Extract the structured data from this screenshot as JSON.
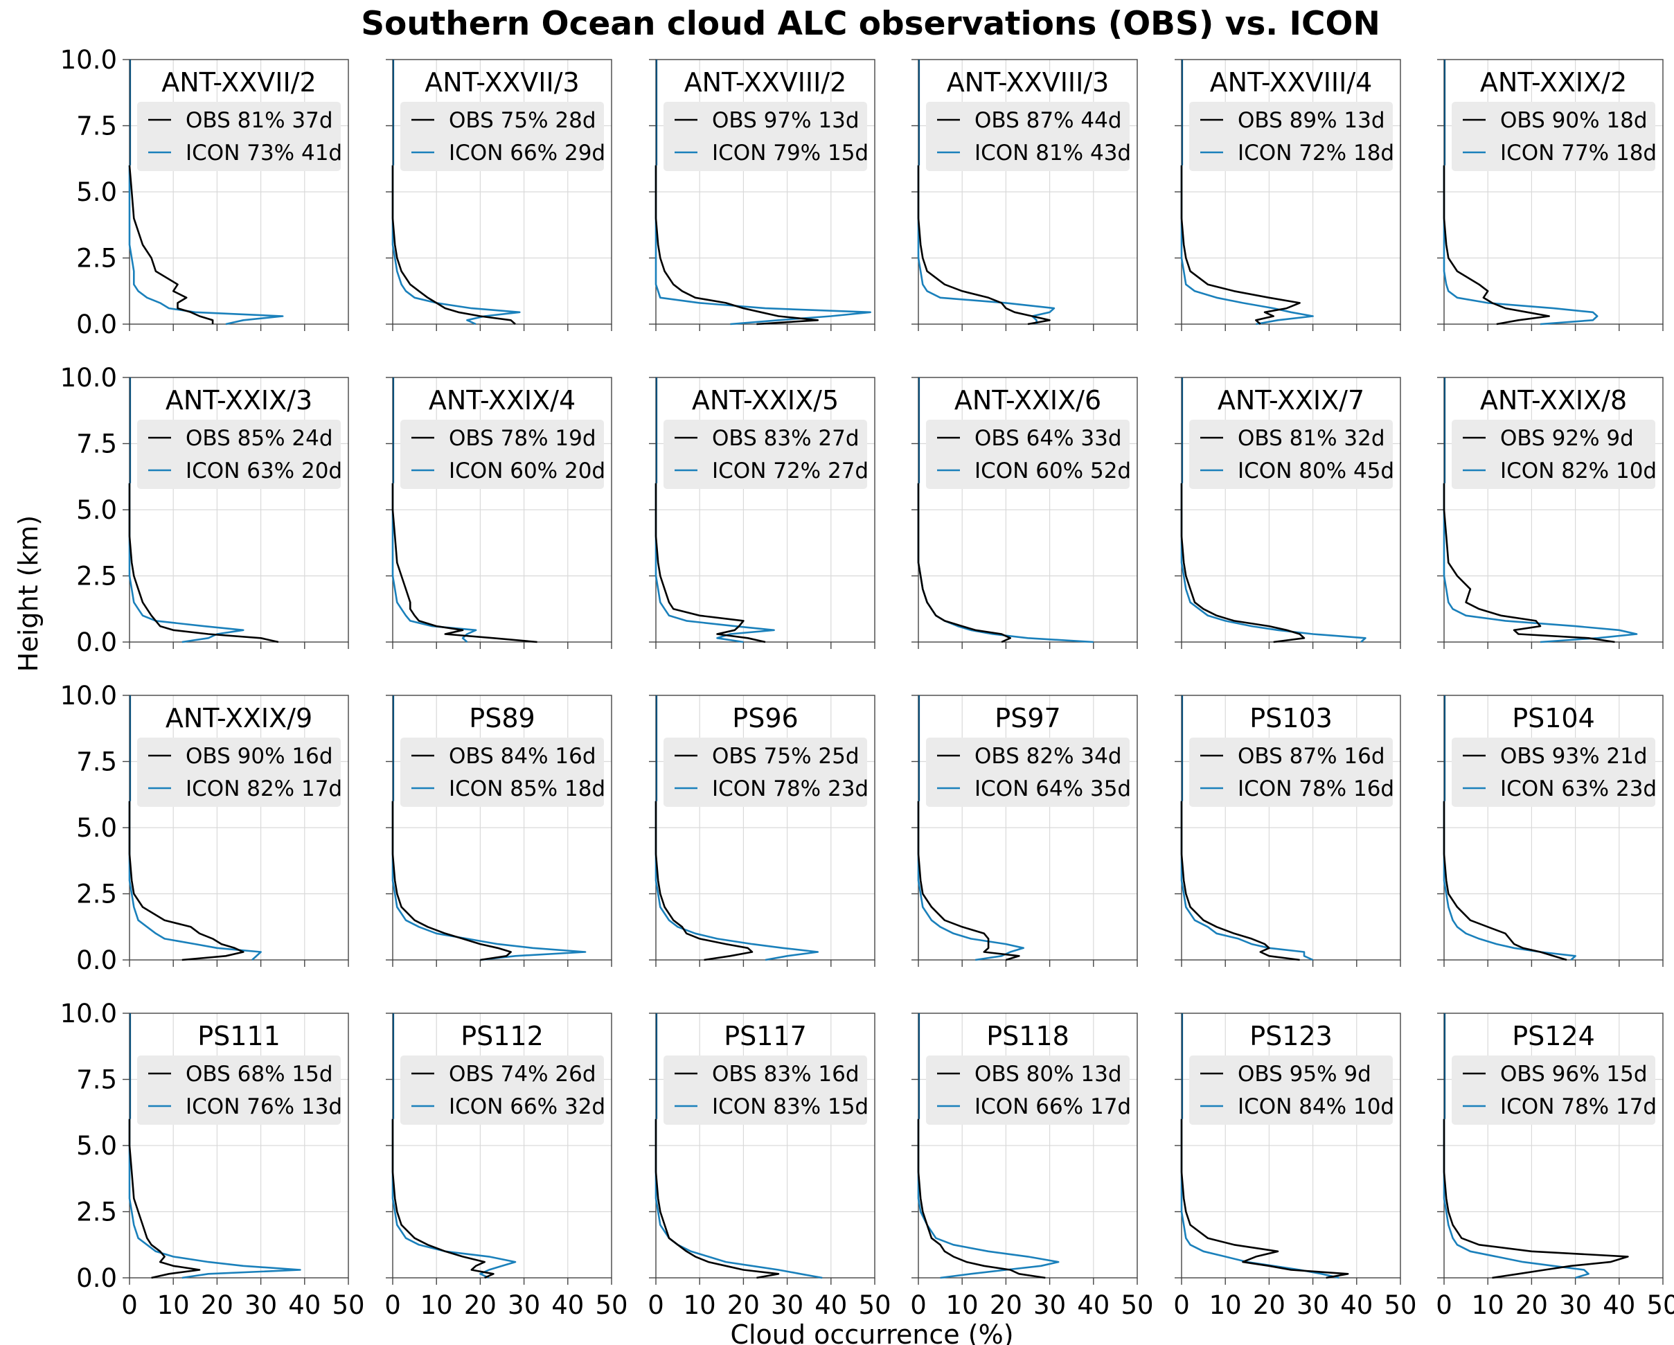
{
  "chart_data": {
    "type": "line",
    "title": "Southern Ocean cloud ALC observations (OBS) vs. ICON",
    "xlabel": "Cloud occurrence (%)",
    "ylabel": "Height (km)",
    "xlim": [
      0,
      50
    ],
    "ylim": [
      0,
      10
    ],
    "xticks": [
      "0",
      "10",
      "20",
      "30",
      "40",
      "50"
    ],
    "yticks": [
      "0.0",
      "2.5",
      "5.0",
      "7.5",
      "10.0"
    ],
    "grid": true,
    "legend_position": "top-center",
    "colors": {
      "OBS": "#000000",
      "ICON": "#1a80bb"
    },
    "height_km": [
      0,
      0.15,
      0.3,
      0.45,
      0.6,
      0.8,
      1.0,
      1.25,
      1.5,
      2.0,
      2.5,
      3.0,
      4.0,
      5.0,
      6.0
    ],
    "panels": [
      {
        "title": "ANT-XXVII/2",
        "obs_label": "OBS 81% 37d",
        "icon_label": "ICON 73% 41d",
        "obs": [
          19,
          19,
          16,
          14,
          11,
          11,
          13,
          10,
          11,
          6,
          5,
          3,
          1,
          0.5,
          0
        ],
        "icon": [
          22,
          26,
          35,
          15,
          9,
          7,
          4,
          2,
          1,
          1,
          0.5,
          0,
          0,
          0,
          0
        ]
      },
      {
        "title": "ANT-XXVII/3",
        "obs_label": "OBS 75% 28d",
        "icon_label": "ICON 66% 29d",
        "obs": [
          28,
          27,
          20,
          15,
          12,
          10,
          8,
          6,
          4,
          2,
          1,
          0.5,
          0,
          0,
          0
        ],
        "icon": [
          19,
          17,
          21,
          29,
          18,
          10,
          5,
          3,
          2,
          1,
          0.5,
          0,
          0,
          0,
          0
        ]
      },
      {
        "title": "ANT-XXVIII/2",
        "obs_label": "OBS 97% 13d",
        "icon_label": "ICON 79% 15d",
        "obs": [
          23,
          37,
          28,
          24,
          20,
          16,
          9,
          6,
          4,
          2,
          1,
          0.5,
          0,
          0,
          0
        ],
        "icon": [
          17,
          28,
          40,
          49,
          25,
          10,
          1,
          0.5,
          0,
          0,
          0,
          0,
          0,
          0,
          0
        ]
      },
      {
        "title": "ANT-XXVIII/3",
        "obs_label": "OBS 87% 44d",
        "icon_label": "ICON 81% 43d",
        "obs": [
          25,
          30,
          26,
          22,
          20,
          19,
          16,
          10,
          6,
          2,
          1,
          0.5,
          0,
          0,
          0
        ],
        "icon": [
          27,
          27,
          26,
          30,
          31,
          20,
          5,
          2,
          1,
          0.5,
          0,
          0,
          0,
          0,
          0
        ]
      },
      {
        "title": "ANT-XXVIII/4",
        "obs_label": "OBS 89% 13d",
        "icon_label": "ICON 72% 18d",
        "obs": [
          18,
          17,
          21,
          19,
          24,
          27,
          20,
          12,
          6,
          2,
          1,
          0.5,
          0,
          0,
          0
        ],
        "icon": [
          17,
          22,
          30,
          25,
          21,
          14,
          8,
          3,
          1,
          0.5,
          0,
          0,
          0,
          0,
          0
        ]
      },
      {
        "title": "ANT-XXIX/2",
        "obs_label": "OBS 90% 18d",
        "icon_label": "ICON 77% 18d",
        "obs": [
          12,
          17,
          24,
          19,
          14,
          11,
          9,
          10,
          8,
          3,
          1,
          0.5,
          0,
          0,
          0
        ],
        "icon": [
          22,
          34,
          35,
          34,
          25,
          10,
          3,
          1,
          0.5,
          0,
          0,
          0,
          0,
          0,
          0
        ]
      },
      {
        "title": "ANT-XXIX/3",
        "obs_label": "OBS 85% 24d",
        "icon_label": "ICON 63% 20d",
        "obs": [
          34,
          30,
          18,
          10,
          7,
          6,
          5,
          4,
          3,
          2,
          1,
          0.5,
          0,
          0,
          0
        ],
        "icon": [
          12,
          18,
          20,
          26,
          17,
          6,
          3,
          2,
          1,
          0.5,
          0,
          0,
          0,
          0,
          0
        ]
      },
      {
        "title": "ANT-XXIX/4",
        "obs_label": "OBS 78% 19d",
        "icon_label": "ICON 60% 20d",
        "obs": [
          33,
          23,
          12,
          16,
          10,
          6,
          5,
          4,
          4,
          3,
          2,
          1,
          0.5,
          0,
          0
        ],
        "icon": [
          17,
          16,
          17,
          19,
          9,
          4,
          3,
          2,
          1,
          0.5,
          0,
          0,
          0,
          0,
          0
        ]
      },
      {
        "title": "ANT-XXIX/5",
        "obs_label": "OBS 83% 27d",
        "icon_label": "ICON 72% 27d",
        "obs": [
          25,
          21,
          14,
          18,
          19,
          20,
          10,
          4,
          3,
          2,
          1,
          0.5,
          0,
          0,
          0
        ],
        "icon": [
          20,
          14,
          17,
          27,
          18,
          7,
          3,
          2,
          1,
          0.5,
          0,
          0,
          0,
          0,
          0
        ]
      },
      {
        "title": "ANT-XXIX/6",
        "obs_label": "OBS 64% 33d",
        "icon_label": "ICON 60% 52d",
        "obs": [
          19,
          21,
          19,
          13,
          10,
          6,
          4,
          3,
          2,
          1,
          0.5,
          0,
          0,
          0,
          0
        ],
        "icon": [
          40,
          25,
          17,
          12,
          9,
          6,
          4,
          3,
          2,
          1,
          0.5,
          0,
          0,
          0,
          0
        ]
      },
      {
        "title": "ANT-XXIX/7",
        "obs_label": "OBS 81% 32d",
        "icon_label": "ICON 80% 45d",
        "obs": [
          21,
          28,
          27,
          24,
          20,
          12,
          8,
          5,
          3,
          2,
          1,
          0.5,
          0,
          0,
          0
        ],
        "icon": [
          41,
          42,
          30,
          22,
          16,
          10,
          6,
          4,
          2,
          1,
          0.5,
          0,
          0,
          0,
          0
        ]
      },
      {
        "title": "ANT-XXIX/8",
        "obs_label": "OBS 92% 9d",
        "icon_label": "ICON 82% 10d",
        "obs": [
          39,
          33,
          17,
          16,
          22,
          21,
          13,
          8,
          5,
          6,
          3,
          1,
          0.5,
          0,
          0
        ],
        "icon": [
          22,
          35,
          44,
          40,
          30,
          14,
          5,
          2,
          1,
          0.5,
          0,
          0,
          0,
          0,
          0
        ]
      },
      {
        "title": "ANT-XXIX/9",
        "obs_label": "OBS 90% 16d",
        "icon_label": "ICON 82% 17d",
        "obs": [
          12,
          22,
          26,
          24,
          21,
          19,
          16,
          14,
          8,
          3,
          1,
          0.5,
          0,
          0,
          0
        ],
        "icon": [
          28,
          29,
          30,
          20,
          15,
          8,
          6,
          4,
          2,
          1,
          0.5,
          0,
          0,
          0,
          0
        ]
      },
      {
        "title": "PS89",
        "obs_label": "OBS 84% 16d",
        "icon_label": "ICON 85% 18d",
        "obs": [
          20,
          26,
          27,
          24,
          20,
          16,
          12,
          8,
          5,
          2,
          1,
          0.5,
          0,
          0,
          0
        ],
        "icon": [
          20,
          28,
          44,
          32,
          24,
          17,
          10,
          6,
          3,
          1,
          0.5,
          0,
          0,
          0,
          0
        ]
      },
      {
        "title": "PS96",
        "obs_label": "OBS 75% 25d",
        "icon_label": "ICON 78% 23d",
        "obs": [
          11,
          17,
          22,
          21,
          16,
          10,
          7,
          6,
          4,
          2,
          1,
          0.5,
          0,
          0,
          0
        ],
        "icon": [
          25,
          30,
          37,
          29,
          22,
          14,
          9,
          5,
          3,
          1,
          0.5,
          0,
          0,
          0,
          0
        ]
      },
      {
        "title": "PS97",
        "obs_label": "OBS 82% 34d",
        "icon_label": "ICON 64% 35d",
        "obs": [
          20,
          23,
          15,
          16,
          16,
          16,
          15,
          10,
          6,
          3,
          1,
          0.5,
          0,
          0,
          0
        ],
        "icon": [
          13,
          19,
          21,
          24,
          20,
          12,
          8,
          5,
          3,
          1,
          0.5,
          0,
          0,
          0,
          0
        ]
      },
      {
        "title": "PS103",
        "obs_label": "OBS 87% 16d",
        "icon_label": "ICON 78% 16d",
        "obs": [
          27,
          20,
          18,
          20,
          19,
          16,
          12,
          8,
          5,
          2,
          1,
          0.5,
          0,
          0,
          0
        ],
        "icon": [
          30,
          28,
          28,
          20,
          16,
          13,
          8,
          6,
          3,
          1,
          0.5,
          0,
          0,
          0,
          0
        ]
      },
      {
        "title": "PS104",
        "obs_label": "OBS 93% 21d",
        "icon_label": "ICON 63% 23d",
        "obs": [
          28,
          25,
          22,
          18,
          16,
          15,
          14,
          10,
          6,
          3,
          1,
          0.5,
          0,
          0,
          0
        ],
        "icon": [
          29,
          30,
          22,
          16,
          12,
          8,
          5,
          3,
          2,
          1,
          0.5,
          0,
          0,
          0,
          0
        ]
      },
      {
        "title": "PS111",
        "obs_label": "OBS 68% 15d",
        "icon_label": "ICON 76% 13d",
        "obs": [
          5,
          9,
          16,
          10,
          7,
          8,
          7,
          5,
          4,
          3,
          2,
          1,
          0.5,
          0,
          0
        ],
        "icon": [
          12,
          18,
          39,
          26,
          18,
          10,
          6,
          4,
          2,
          1,
          0.5,
          0,
          0,
          0,
          0
        ]
      },
      {
        "title": "PS112",
        "obs_label": "OBS 74% 26d",
        "icon_label": "ICON 66% 32d",
        "obs": [
          21,
          23,
          18,
          19,
          21,
          16,
          12,
          8,
          5,
          2,
          1,
          0.5,
          0,
          0,
          0
        ],
        "icon": [
          22,
          20,
          22,
          25,
          28,
          22,
          12,
          6,
          3,
          1,
          0.5,
          0,
          0,
          0,
          0
        ]
      },
      {
        "title": "PS117",
        "obs_label": "OBS 83% 16d",
        "icon_label": "ICON 83% 15d",
        "obs": [
          23,
          28,
          20,
          16,
          12,
          9,
          7,
          5,
          3,
          2,
          1,
          0.5,
          0,
          0,
          0
        ],
        "icon": [
          38,
          33,
          28,
          22,
          16,
          12,
          8,
          5,
          3,
          1,
          0.5,
          0,
          0,
          0,
          0
        ]
      },
      {
        "title": "PS118",
        "obs_label": "OBS 80% 13d",
        "icon_label": "ICON 66% 17d",
        "obs": [
          29,
          23,
          21,
          15,
          11,
          8,
          6,
          5,
          3,
          2,
          1,
          0.5,
          0,
          0,
          0
        ],
        "icon": [
          5,
          12,
          20,
          28,
          32,
          25,
          16,
          8,
          4,
          2,
          0.5,
          0,
          0,
          0,
          0
        ]
      },
      {
        "title": "PS123",
        "obs_label": "OBS 95% 9d",
        "icon_label": "ICON 84% 10d",
        "obs": [
          33,
          38,
          25,
          20,
          14,
          17,
          22,
          12,
          6,
          2,
          1,
          0.5,
          0,
          0,
          0
        ],
        "icon": [
          36,
          32,
          27,
          21,
          15,
          10,
          5,
          2,
          1,
          0.5,
          0,
          0,
          0,
          0,
          0
        ]
      },
      {
        "title": "PS124",
        "obs_label": "OBS 96% 15d",
        "icon_label": "ICON 78% 17d",
        "obs": [
          11,
          17,
          23,
          29,
          38,
          42,
          20,
          8,
          4,
          2,
          1,
          0.5,
          0,
          0,
          0
        ],
        "icon": [
          30,
          33,
          32,
          25,
          18,
          12,
          6,
          3,
          2,
          1,
          0.5,
          0,
          0,
          0,
          0
        ]
      }
    ]
  }
}
